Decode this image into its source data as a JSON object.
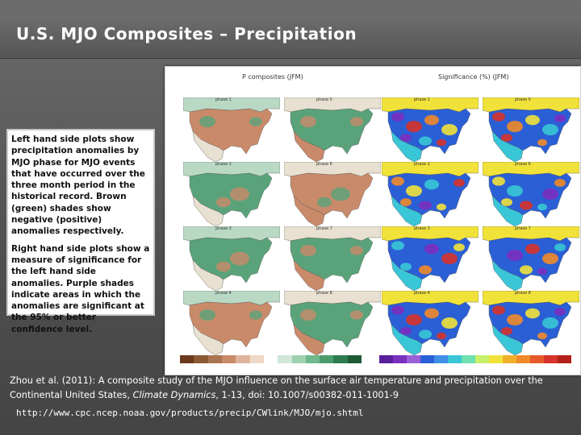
{
  "slide": {
    "title": "U.S. MJO Composites – Precipitation"
  },
  "figure": {
    "left_heading": "P composites (JFM)",
    "right_heading": "Significance (%) (JFM)",
    "left_panels": [
      {
        "label": "phase 1"
      },
      {
        "label": "phase 5"
      },
      {
        "label": "phase 2"
      },
      {
        "label": "phase 6"
      },
      {
        "label": "phase 3"
      },
      {
        "label": "phase 7"
      },
      {
        "label": "phase 4"
      },
      {
        "label": "phase 8"
      }
    ],
    "right_panels": [
      {
        "label": "phase 1"
      },
      {
        "label": "phase 5"
      },
      {
        "label": "phase 2"
      },
      {
        "label": "phase 6"
      },
      {
        "label": "phase 3"
      },
      {
        "label": "phase 7"
      },
      {
        "label": "phase 4"
      },
      {
        "label": "phase 8"
      }
    ],
    "colors": {
      "brown": "#c98a6a",
      "green": "#5aa37a",
      "neutral": "#e8e0d0",
      "purple": "#7b2fbf",
      "blue": "#2a5fd6",
      "cyan": "#39c6d6",
      "yellow": "#f1e23a",
      "orange": "#f08a2a",
      "red": "#d6332a"
    }
  },
  "callout": {
    "para1": "Left hand side plots show precipitation anomalies by MJO phase for MJO events that have occurred over the three month period in the historical record. Brown (green) shades show negative (positive) anomalies respectively.",
    "para2": "Right hand side plots show a measure of significance for the left hand side anomalies. Purple shades indicate areas in which the anomalies are significant at the 95% or better confidence level."
  },
  "citation": {
    "text_before": "Zhou et al. (2011): A composite study of the MJO influence on the surface air temperature and precipitation over the Continental United States, ",
    "journal": "Climate Dynamics",
    "text_after": ", 1-13, doi: 10.1007/s00382-011-1001-9",
    "url": "http://www.cpc.ncep.noaa.gov/products/precip/CWlink/MJO/mjo.shtml"
  }
}
